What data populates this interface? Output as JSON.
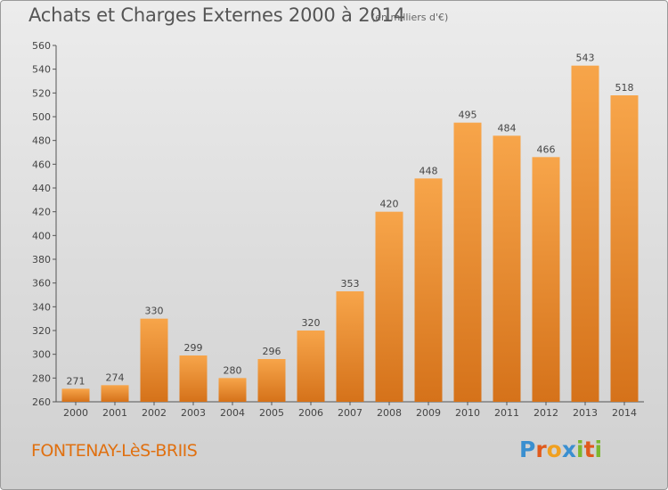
{
  "title": "Achats et Charges Externes 2000 à 2014",
  "subtitle": "(en milliers d'€)",
  "commune": "FONTENAY-LèS-BRIIS",
  "logo": {
    "text": "Proxiti",
    "letters": [
      "P",
      "r",
      "o",
      "x",
      "i",
      "t",
      "i"
    ],
    "colors": [
      "#3a8fd0",
      "#e05a1c",
      "#f0a020",
      "#3a8fd0",
      "#7cb82f",
      "#e05a1c",
      "#7cb82f"
    ]
  },
  "colors": {
    "bar_light": "#f7a54a",
    "bar_dark": "#d5721a",
    "commune_text": "#e07010"
  },
  "chart_data": {
    "type": "bar",
    "title": "Achats et Charges Externes 2000 à 2014",
    "subtitle": "(en milliers d'€)",
    "categories": [
      "2000",
      "2001",
      "2002",
      "2003",
      "2004",
      "2005",
      "2006",
      "2007",
      "2008",
      "2009",
      "2010",
      "2011",
      "2012",
      "2013",
      "2014"
    ],
    "values": [
      271,
      274,
      330,
      299,
      280,
      296,
      320,
      353,
      420,
      448,
      495,
      484,
      466,
      543,
      518
    ],
    "ylim": [
      260,
      560
    ],
    "yticks": [
      260,
      280,
      300,
      320,
      340,
      360,
      380,
      400,
      420,
      440,
      460,
      480,
      500,
      520,
      540,
      560
    ],
    "grid": false,
    "xlabel": "",
    "ylabel": ""
  }
}
